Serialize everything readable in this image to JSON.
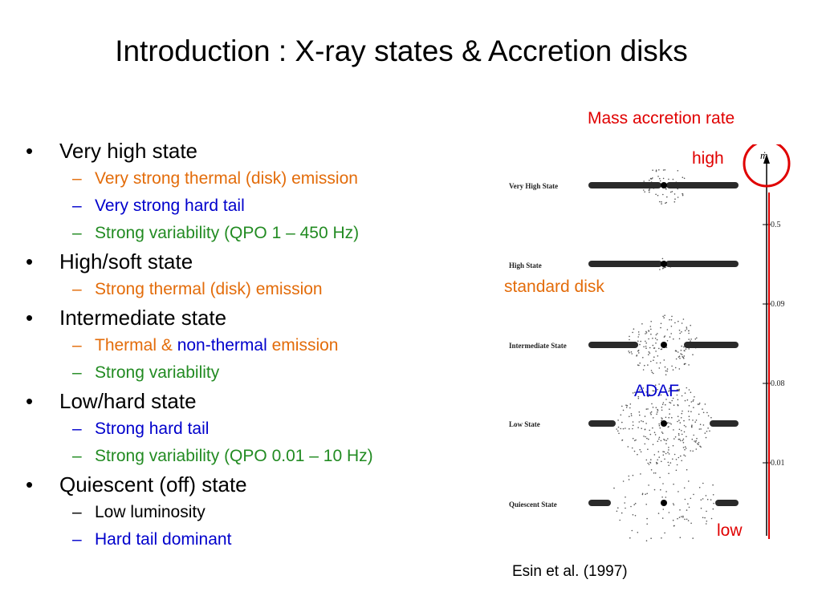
{
  "title": "Introduction : X-ray states & Accretion disks",
  "bullets": [
    {
      "text": "Very high state",
      "subs": [
        {
          "parts": [
            {
              "text": "Very strong thermal (disk) emission",
              "color": "orange"
            }
          ]
        },
        {
          "parts": [
            {
              "text": "Very strong hard tail",
              "color": "blue"
            }
          ]
        },
        {
          "parts": [
            {
              "text": "Strong variability (QPO 1 – 450 Hz)",
              "color": "green"
            }
          ]
        }
      ]
    },
    {
      "text": "High/soft state",
      "subs": [
        {
          "parts": [
            {
              "text": "Strong thermal (disk) emission",
              "color": "orange"
            }
          ]
        }
      ]
    },
    {
      "text": "Intermediate state",
      "subs": [
        {
          "parts": [
            {
              "text": "Thermal & ",
              "color": "orange"
            },
            {
              "text": "non-thermal",
              "color": "blue"
            },
            {
              "text": " emission",
              "color": "orange"
            }
          ]
        },
        {
          "parts": [
            {
              "text": "Strong variability",
              "color": "green"
            }
          ]
        }
      ]
    },
    {
      "text": "Low/hard state",
      "subs": [
        {
          "parts": [
            {
              "text": "Strong hard tail",
              "color": "blue"
            }
          ]
        },
        {
          "parts": [
            {
              "text": "Strong variability (QPO 0.01 – 10 Hz)",
              "color": "green"
            }
          ]
        }
      ]
    },
    {
      "text": "Quiescent (off) state",
      "subs": [
        {
          "parts": [
            {
              "text": "Low luminosity",
              "color": "black"
            }
          ]
        },
        {
          "parts": [
            {
              "text": "Hard tail dominant",
              "color": "blue"
            }
          ]
        }
      ]
    }
  ],
  "figure": {
    "states": [
      "Very High State",
      "High State",
      "Intermediate State",
      "Low State",
      "Quiescent State"
    ],
    "axis_symbol": "ṁ",
    "ticks": [
      "0.5",
      "0.09",
      "0.08",
      "0.01"
    ],
    "annotations": {
      "mass_accretion_rate": "Mass accretion rate",
      "high": "high",
      "low": "low",
      "standard_disk": "standard disk",
      "adaf": "ADAF"
    },
    "caption": "Esin et al. (1997)"
  },
  "colors": {
    "orange": "#e36c0a",
    "blue": "#0000cc",
    "green": "#228b22",
    "red": "#e00000"
  }
}
